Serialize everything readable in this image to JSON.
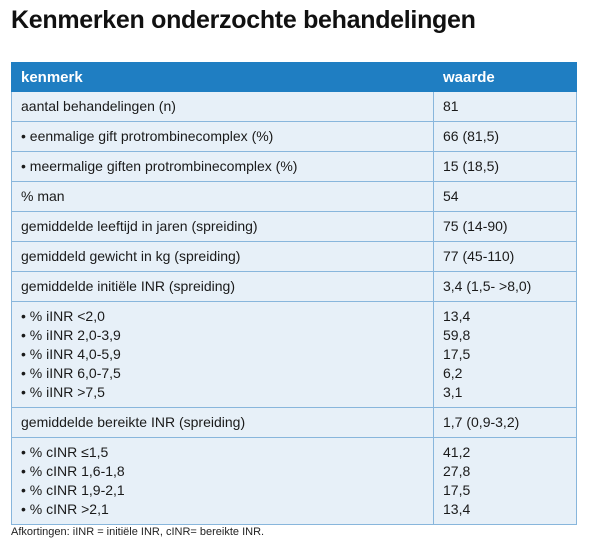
{
  "header": {
    "title": "Kenmerken onderzochte behandelingen"
  },
  "table": {
    "columns": [
      "kenmerk",
      "waarde"
    ],
    "rows": [
      [
        "aantal behandelingen (n)",
        "81"
      ],
      [
        "• eenmalige gift protrombinecomplex (%)",
        "66 (81,5)"
      ],
      [
        "• meermalige giften protrombinecomplex (%)",
        "15 (18,5)"
      ],
      [
        "% man",
        "54"
      ],
      [
        "gemiddelde leeftijd in jaren (spreiding)",
        "75 (14-90)"
      ],
      [
        "gemiddeld gewicht in kg (spreiding)",
        "77 (45-110)"
      ],
      [
        "gemiddelde initiële INR (spreiding)",
        "3,4 (1,5- >8,0)"
      ],
      [
        [
          "• % iINR <2,0",
          "• % iINR 2,0-3,9",
          "• % iINR 4,0-5,9",
          "• % iINR 6,0-7,5",
          "• % iINR >7,5"
        ],
        [
          "13,4",
          "59,8",
          "17,5",
          "6,2",
          "3,1"
        ]
      ],
      [
        "gemiddelde bereikte INR (spreiding)",
        "1,7 (0,9-3,2)"
      ],
      [
        [
          "• % cINR ≤1,5",
          "• % cINR 1,6-1,8",
          "• % cINR 1,9-2,1",
          "• % cINR >2,1"
        ],
        [
          "41,2",
          "27,8",
          "17,5",
          "13,4"
        ]
      ]
    ]
  },
  "footnote": "Afkortingen: iINR = initiële INR, cINR= bereikte INR."
}
